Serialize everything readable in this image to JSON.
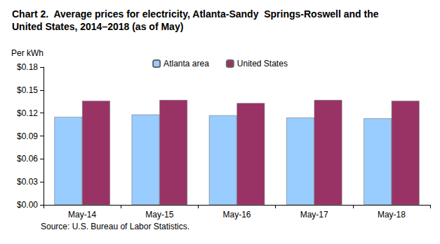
{
  "chart_data": {
    "type": "bar",
    "title": "Chart 2.  Average prices for electricity, Atlanta-Sandy  Springs-Roswell and the United States, 2014–2018 (as of May)",
    "y_label": "Per kWh",
    "source": "Source: U.S. Bureau of Labor Statistics.",
    "categories": [
      "May-14",
      "May-15",
      "May-16",
      "May-17",
      "May-18"
    ],
    "series": [
      {
        "name": "Atlanta area",
        "color": "#99ccff",
        "values": [
          0.115,
          0.118,
          0.117,
          0.114,
          0.113
        ]
      },
      {
        "name": "United States",
        "color": "#993366",
        "values": [
          0.136,
          0.137,
          0.133,
          0.137,
          0.136
        ]
      }
    ],
    "ylim": [
      0,
      0.18
    ],
    "yticks": [
      {
        "value": 0,
        "label": "$0.00"
      },
      {
        "value": 0.03,
        "label": "$0.03"
      },
      {
        "value": 0.06,
        "label": "$0.06"
      },
      {
        "value": 0.09,
        "label": "$0.09"
      },
      {
        "value": 0.12,
        "label": "$0.12"
      },
      {
        "value": 0.15,
        "label": "$0.15"
      },
      {
        "value": 0.18,
        "label": "$0.18"
      }
    ],
    "grid": false,
    "legend": "top"
  }
}
